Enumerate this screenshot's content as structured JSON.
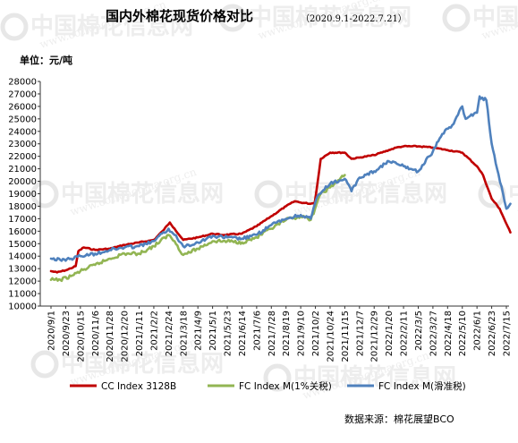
{
  "chart_data": {
    "type": "line",
    "title": "国内外棉花现货价格对比",
    "subtitle": "（2020.9.1-2022.7.21）",
    "unit_label": "单位：元/吨",
    "ylim": [
      10000,
      28000
    ],
    "y_ticks": [
      10000,
      11000,
      12000,
      13000,
      14000,
      15000,
      16000,
      17000,
      18000,
      19000,
      20000,
      21000,
      22000,
      23000,
      24000,
      25000,
      26000,
      27000,
      28000
    ],
    "x_ticks": [
      "2020/9/1",
      "2020/9/23",
      "2020/10/15",
      "2020/11/6",
      "2020/11/28",
      "2020/12/20",
      "2021/1/11",
      "2021/2/2",
      "2021/2/24",
      "2021/3/18",
      "2021/4/9",
      "2021/5/1",
      "2021/5/23",
      "2021/6/14",
      "2021/7/6",
      "2021/7/28",
      "2021/8/19",
      "2021/9/10",
      "2021/10/2",
      "2021/10/24",
      "2021/11/15",
      "2021/12/7",
      "2021/12/29",
      "2022/1/20",
      "2022/2/11",
      "2022/3/5",
      "2022/3/27",
      "2022/4/18",
      "2022/5/10",
      "2022/6/1",
      "2022/6/23",
      "2022/7/15"
    ],
    "series": [
      {
        "name": "CC Index 3128B",
        "color": "#c00000",
        "points": [
          [
            "2020/9/1",
            12800
          ],
          [
            "2020/9/10",
            12700
          ],
          [
            "2020/9/25",
            12900
          ],
          [
            "2020/10/8",
            13200
          ],
          [
            "2020/10/12",
            14400
          ],
          [
            "2020/10/20",
            14700
          ],
          [
            "2020/11/6",
            14500
          ],
          [
            "2020/11/28",
            14600
          ],
          [
            "2020/12/20",
            14900
          ],
          [
            "2021/1/11",
            15100
          ],
          [
            "2021/2/2",
            15300
          ],
          [
            "2021/2/15",
            16000
          ],
          [
            "2021/2/26",
            16700
          ],
          [
            "2021/3/5",
            16200
          ],
          [
            "2021/3/18",
            15300
          ],
          [
            "2021/4/9",
            15500
          ],
          [
            "2021/5/1",
            15800
          ],
          [
            "2021/5/15",
            15700
          ],
          [
            "2021/6/14",
            15800
          ],
          [
            "2021/7/6",
            16400
          ],
          [
            "2021/7/28",
            17200
          ],
          [
            "2021/8/19",
            18000
          ],
          [
            "2021/9/1",
            18400
          ],
          [
            "2021/9/10",
            18300
          ],
          [
            "2021/9/25",
            18200
          ],
          [
            "2021/10/1",
            18300
          ],
          [
            "2021/10/5",
            19800
          ],
          [
            "2021/10/10",
            21800
          ],
          [
            "2021/10/24",
            22300
          ],
          [
            "2021/11/15",
            22300
          ],
          [
            "2021/11/25",
            21800
          ],
          [
            "2021/12/7",
            21900
          ],
          [
            "2021/12/29",
            22100
          ],
          [
            "2022/1/20",
            22500
          ],
          [
            "2022/1/31",
            22700
          ],
          [
            "2022/2/11",
            22800
          ],
          [
            "2022/3/5",
            22800
          ],
          [
            "2022/3/27",
            22700
          ],
          [
            "2022/4/18",
            22500
          ],
          [
            "2022/5/10",
            22300
          ],
          [
            "2022/6/1",
            21200
          ],
          [
            "2022/6/10",
            20500
          ],
          [
            "2022/6/23",
            18600
          ],
          [
            "2022/7/5",
            17800
          ],
          [
            "2022/7/15",
            16600
          ],
          [
            "2022/7/21",
            15900
          ]
        ]
      },
      {
        "name": "FC Index M(1%关税)",
        "color": "#92b553",
        "points": [
          [
            "2020/9/1",
            12100
          ],
          [
            "2020/9/15",
            12100
          ],
          [
            "2020/10/1",
            12400
          ],
          [
            "2020/10/15",
            12800
          ],
          [
            "2020/11/6",
            13300
          ],
          [
            "2020/11/28",
            13800
          ],
          [
            "2020/12/20",
            14200
          ],
          [
            "2021/1/11",
            14200
          ],
          [
            "2021/2/2",
            14800
          ],
          [
            "2021/2/24",
            15700
          ],
          [
            "2021/3/5",
            15200
          ],
          [
            "2021/3/18",
            14100
          ],
          [
            "2021/4/9",
            14600
          ],
          [
            "2021/5/1",
            15200
          ],
          [
            "2021/5/23",
            15200
          ],
          [
            "2021/6/14",
            15100
          ],
          [
            "2021/7/6",
            15500
          ],
          [
            "2021/7/28",
            16200
          ],
          [
            "2021/8/19",
            16900
          ],
          [
            "2021/9/10",
            17200
          ],
          [
            "2021/9/25",
            16900
          ],
          [
            "2021/10/10",
            19000
          ],
          [
            "2021/10/24",
            19500
          ],
          [
            "2021/11/15",
            20500
          ]
        ]
      },
      {
        "name": "FC Index M(滑准税)",
        "color": "#4f81bd",
        "points": [
          [
            "2020/9/1",
            13800
          ],
          [
            "2020/9/15",
            13700
          ],
          [
            "2020/10/1",
            13800
          ],
          [
            "2020/10/15",
            14000
          ],
          [
            "2020/11/6",
            14200
          ],
          [
            "2020/11/28",
            14500
          ],
          [
            "2020/12/20",
            14700
          ],
          [
            "2021/1/11",
            14800
          ],
          [
            "2021/2/2",
            15200
          ],
          [
            "2021/2/24",
            16200
          ],
          [
            "2021/3/5",
            15700
          ],
          [
            "2021/3/18",
            14800
          ],
          [
            "2021/4/9",
            15100
          ],
          [
            "2021/5/1",
            15600
          ],
          [
            "2021/5/23",
            15500
          ],
          [
            "2021/6/14",
            15400
          ],
          [
            "2021/7/6",
            15700
          ],
          [
            "2021/7/28",
            16500
          ],
          [
            "2021/8/19",
            17000
          ],
          [
            "2021/9/10",
            17300
          ],
          [
            "2021/9/25",
            17000
          ],
          [
            "2021/10/5",
            18800
          ],
          [
            "2021/10/24",
            19800
          ],
          [
            "2021/11/15",
            20200
          ],
          [
            "2021/11/25",
            19200
          ],
          [
            "2021/12/7",
            20300
          ],
          [
            "2021/12/29",
            20800
          ],
          [
            "2022/1/20",
            21600
          ],
          [
            "2022/2/11",
            21200
          ],
          [
            "2022/3/5",
            20800
          ],
          [
            "2022/3/27",
            22400
          ],
          [
            "2022/4/10",
            23800
          ],
          [
            "2022/4/25",
            24500
          ],
          [
            "2022/5/10",
            26000
          ],
          [
            "2022/5/15",
            25000
          ],
          [
            "2022/6/1",
            25500
          ],
          [
            "2022/6/5",
            26800
          ],
          [
            "2022/6/15",
            26500
          ],
          [
            "2022/6/23",
            23000
          ],
          [
            "2022/7/1",
            21000
          ],
          [
            "2022/7/10",
            19000
          ],
          [
            "2022/7/15",
            17800
          ],
          [
            "2022/7/21",
            18200
          ]
        ]
      }
    ],
    "grid": false,
    "legend_position": "bottom"
  },
  "source_label": "数据来源：棉花展望BCO",
  "watermark": {
    "brand": "中国棉花信息网",
    "url": "www.cottonchina.org.cn"
  }
}
